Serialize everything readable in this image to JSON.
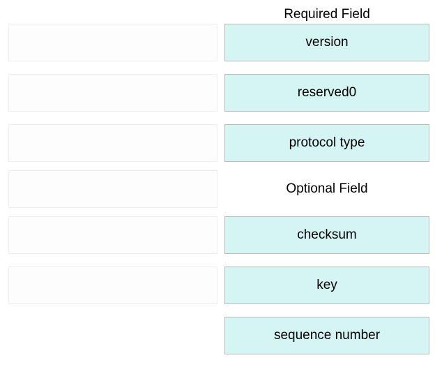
{
  "sections": {
    "required": {
      "title": "Required Field",
      "fields": [
        "version",
        "reserved0",
        "protocol type"
      ]
    },
    "optional": {
      "title": "Optional Field",
      "fields": [
        "checksum",
        "key",
        "sequence number"
      ]
    }
  },
  "style": {
    "filled_bg": "#d5f5f5",
    "filled_border": "#bbbbbb",
    "left_bg": "#fdfdfd",
    "left_border": "#eeeeee",
    "font_size": 19,
    "text_color": "#000000",
    "page_bg": "#ffffff"
  }
}
